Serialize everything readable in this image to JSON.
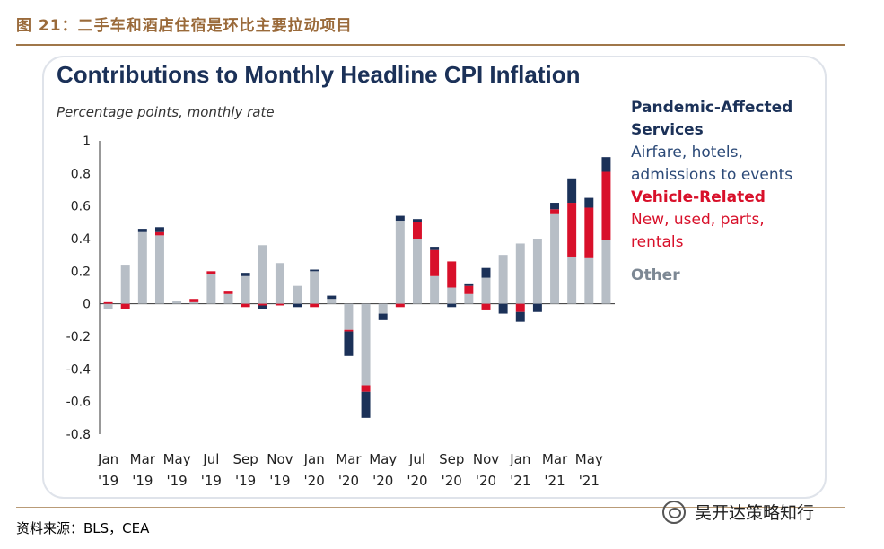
{
  "figure_title": "图 21：二手车和酒店住宿是环比主要拉动项目",
  "source_text": "资料来源：BLS，CEA",
  "watermark_text": "吴开达策略知行",
  "colors": {
    "pandemic": "#1b3158",
    "vehicle": "#d8102a",
    "other": "#b7bec6",
    "rule": "#a0774a",
    "fig_title": "#9a6a3a"
  },
  "legend": {
    "pandemic_title": "Pandemic-Affected",
    "pandemic_title2": "Services",
    "pandemic_sub1": "Airfare, hotels,",
    "pandemic_sub2": "admissions to events",
    "vehicle_title": "Vehicle-Related",
    "vehicle_sub1": "New, used, parts,",
    "vehicle_sub2": "rentals",
    "other_title": "Other"
  },
  "chart_data": {
    "type": "bar",
    "stacked": true,
    "title": "Contributions to Monthly Headline CPI Inflation",
    "subtitle": "Percentage points, monthly rate",
    "ylim": [
      -0.8,
      1.0
    ],
    "yticks": [
      "1",
      "0.8",
      "0.6",
      "0.4",
      "0.2",
      "0",
      "-0.2",
      "-0.4",
      "-0.6",
      "-0.8"
    ],
    "ytick_values": [
      1,
      0.8,
      0.6,
      0.4,
      0.2,
      0,
      -0.2,
      -0.4,
      -0.6,
      -0.8
    ],
    "x_month_labels": [
      "Jan",
      "Mar",
      "May",
      "Jul",
      "Sep",
      "Nov",
      "Jan",
      "Mar",
      "May",
      "Jul",
      "Sep",
      "Nov",
      "Jan",
      "Mar",
      "May"
    ],
    "x_year_labels": [
      "'19",
      "'19",
      "'19",
      "'19",
      "'19",
      "'19",
      "'20",
      "'20",
      "'20",
      "'20",
      "'20",
      "'20",
      "'21",
      "'21",
      "'21"
    ],
    "categories": [
      "Jan 2019",
      "Feb 2019",
      "Mar 2019",
      "Apr 2019",
      "May 2019",
      "Jun 2019",
      "Jul 2019",
      "Aug 2019",
      "Sep 2019",
      "Oct 2019",
      "Nov 2019",
      "Dec 2019",
      "Jan 2020",
      "Feb 2020",
      "Mar 2020",
      "Apr 2020",
      "May 2020",
      "Jun 2020",
      "Jul 2020",
      "Aug 2020",
      "Sep 2020",
      "Oct 2020",
      "Nov 2020",
      "Dec 2020",
      "Jan 2021",
      "Feb 2021",
      "Mar 2021",
      "Apr 2021",
      "May 2021",
      "Jun 2021"
    ],
    "series": [
      {
        "name": "Other",
        "key": "other",
        "values": [
          -0.03,
          0.24,
          0.44,
          0.42,
          0.02,
          0.01,
          0.18,
          0.06,
          0.17,
          0.36,
          0.25,
          0.11,
          0.2,
          0.03,
          -0.16,
          -0.5,
          -0.06,
          0.51,
          0.4,
          0.17,
          0.1,
          0.06,
          0.16,
          0.3,
          0.37,
          0.4,
          0.55,
          0.29,
          0.28,
          0.39
        ]
      },
      {
        "name": "Vehicle-Related",
        "key": "vehicle",
        "values": [
          0.01,
          -0.03,
          0.0,
          0.02,
          0.0,
          0.02,
          0.02,
          0.02,
          -0.02,
          -0.01,
          -0.01,
          0.0,
          -0.02,
          0.0,
          -0.01,
          -0.04,
          0.0,
          -0.02,
          0.1,
          0.16,
          0.16,
          0.05,
          -0.04,
          0.0,
          -0.05,
          0.0,
          0.03,
          0.33,
          0.31,
          0.42
        ]
      },
      {
        "name": "Pandemic-Affected Services",
        "key": "pandemic",
        "values": [
          0.0,
          0.0,
          0.02,
          0.03,
          0.0,
          0.0,
          0.0,
          0.0,
          0.02,
          -0.02,
          0.0,
          -0.02,
          0.01,
          0.02,
          -0.15,
          -0.16,
          -0.04,
          0.03,
          0.02,
          0.02,
          -0.02,
          0.01,
          0.06,
          -0.06,
          -0.06,
          -0.05,
          0.04,
          0.15,
          0.06,
          0.09
        ]
      }
    ]
  }
}
